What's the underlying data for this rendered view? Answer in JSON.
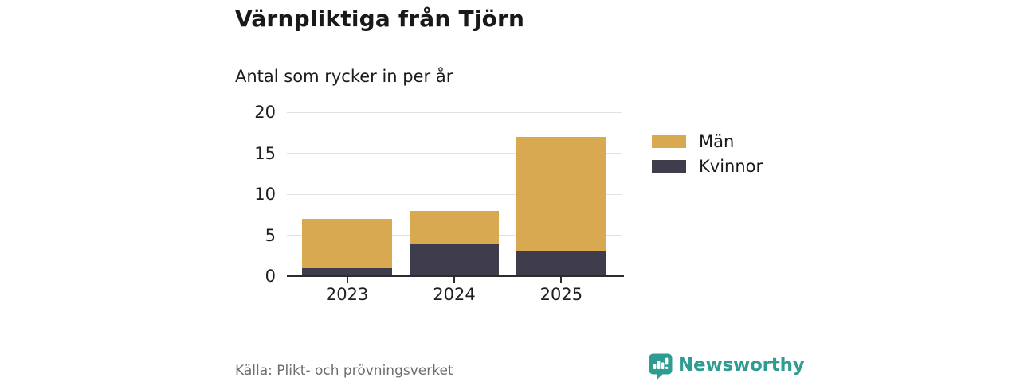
{
  "header": {
    "title": "Värnpliktiga från Tjörn",
    "subtitle": "Antal som rycker in per år"
  },
  "chart_data": {
    "type": "bar",
    "stacked": true,
    "title": "Värnpliktiga från Tjörn",
    "subtitle": "Antal som rycker in per år",
    "categories": [
      "2023",
      "2024",
      "2025"
    ],
    "series": [
      {
        "name": "Män",
        "color": "#d9a952",
        "values": [
          6,
          4,
          14
        ]
      },
      {
        "name": "Kvinnor",
        "color": "#3f3c4c",
        "values": [
          1,
          4,
          3
        ]
      }
    ],
    "stacked_totals": [
      7,
      8,
      17
    ],
    "xlabel": "",
    "ylabel": "",
    "ylim": [
      0,
      20
    ],
    "yticks": [
      0,
      5,
      10,
      15,
      20
    ],
    "grid": true,
    "legend_position": "right"
  },
  "legend": {
    "items": [
      {
        "label": "Män",
        "color": "#d9a952"
      },
      {
        "label": "Kvinnor",
        "color": "#3f3c4c"
      }
    ]
  },
  "footer": {
    "source": "Källa: Plikt- och prövningsverket",
    "brand": "Newsworthy"
  },
  "colors": {
    "men": "#d9a952",
    "women": "#3f3c4c",
    "axis": "#2d2d2d",
    "grid": "#e2e2e2",
    "text": "#1f1f1f",
    "muted": "#6e6e6e",
    "brand": "#2f9c91"
  }
}
